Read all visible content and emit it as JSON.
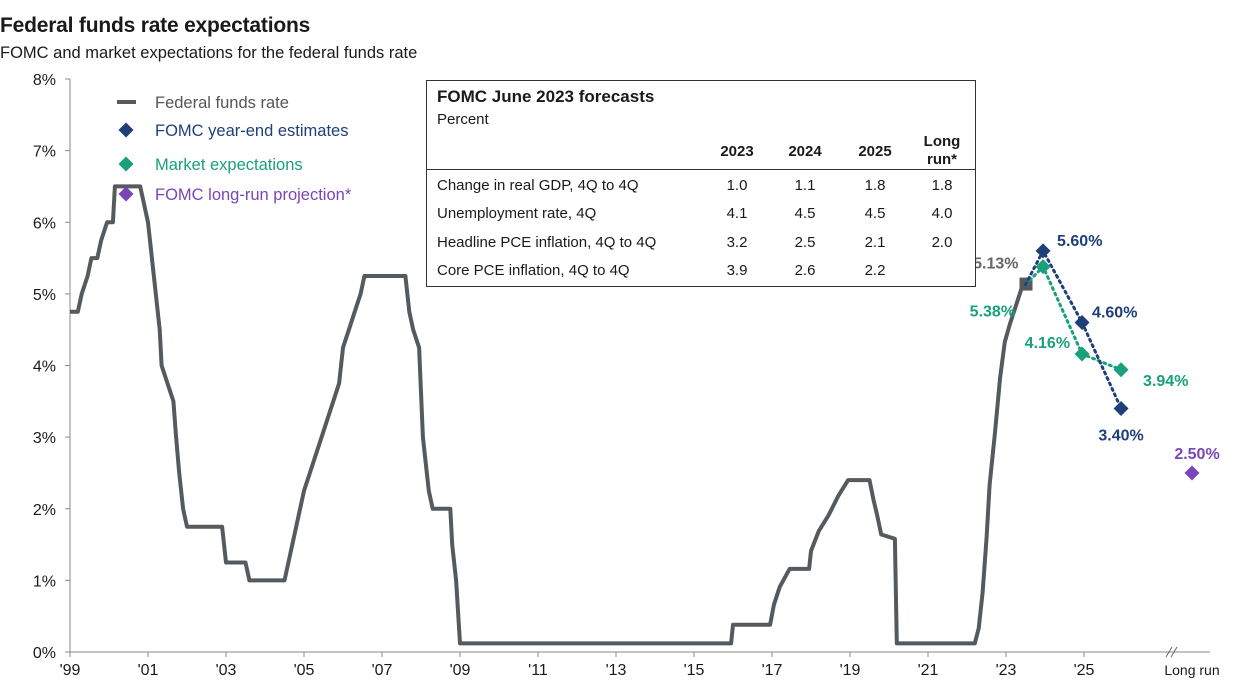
{
  "title": "Federal funds rate expectations",
  "subtitle": "FOMC and market expectations for the federal funds rate",
  "legend": [
    {
      "label": "Federal funds rate",
      "color": "#555a5e",
      "marker": "line"
    },
    {
      "label": "FOMC year-end estimates",
      "color": "#1f3f7a",
      "marker": "diamond"
    },
    {
      "label": "Market expectations",
      "color": "#1aa07a",
      "marker": "diamond"
    },
    {
      "label": "FOMC long-run projection*",
      "color": "#7a45b8",
      "marker": "diamond"
    }
  ],
  "table": {
    "title": "FOMC June 2023 forecasts",
    "unit": "Percent",
    "columns": [
      "2023",
      "2024",
      "2025",
      "Long run*"
    ],
    "rows": [
      {
        "label": "Change in real GDP, 4Q to 4Q",
        "values": [
          "1.0",
          "1.1",
          "1.8",
          "1.8"
        ]
      },
      {
        "label": "Unemployment rate, 4Q",
        "values": [
          "4.1",
          "4.5",
          "4.5",
          "4.0"
        ]
      },
      {
        "label": "Headline PCE inflation, 4Q to 4Q",
        "values": [
          "3.2",
          "2.5",
          "2.1",
          "2.0"
        ]
      },
      {
        "label": "Core PCE inflation, 4Q to 4Q",
        "values": [
          "3.9",
          "2.6",
          "2.2",
          ""
        ]
      }
    ]
  },
  "chart_data": {
    "type": "line",
    "ylim": [
      0,
      8
    ],
    "y_ticks": [
      "0%",
      "1%",
      "2%",
      "3%",
      "4%",
      "5%",
      "6%",
      "7%",
      "8%"
    ],
    "x_ticks": [
      "'99",
      "'01",
      "'03",
      "'05",
      "'07",
      "'09",
      "'11",
      "'13",
      "'15",
      "'17",
      "'19",
      "'21",
      "'23",
      "'25"
    ],
    "x_range": [
      1999,
      2027
    ],
    "long_run_label": "Long run",
    "grid": false,
    "series": [
      {
        "name": "Federal funds rate",
        "color": "#555a5e",
        "points": [
          [
            1999.0,
            4.75
          ],
          [
            1999.2,
            4.75
          ],
          [
            1999.3,
            5.0
          ],
          [
            1999.45,
            5.25
          ],
          [
            1999.55,
            5.5
          ],
          [
            1999.7,
            5.5
          ],
          [
            1999.8,
            5.75
          ],
          [
            1999.95,
            6.0
          ],
          [
            2000.1,
            6.0
          ],
          [
            2000.15,
            6.5
          ],
          [
            2000.8,
            6.5
          ],
          [
            2001.0,
            6.0
          ],
          [
            2001.1,
            5.5
          ],
          [
            2001.2,
            5.0
          ],
          [
            2001.3,
            4.5
          ],
          [
            2001.35,
            4.0
          ],
          [
            2001.5,
            3.75
          ],
          [
            2001.65,
            3.5
          ],
          [
            2001.72,
            3.0
          ],
          [
            2001.8,
            2.5
          ],
          [
            2001.9,
            2.0
          ],
          [
            2002.0,
            1.75
          ],
          [
            2002.9,
            1.75
          ],
          [
            2003.0,
            1.25
          ],
          [
            2003.5,
            1.25
          ],
          [
            2003.6,
            1.0
          ],
          [
            2004.5,
            1.0
          ],
          [
            2004.6,
            1.25
          ],
          [
            2004.7,
            1.5
          ],
          [
            2004.8,
            1.75
          ],
          [
            2004.9,
            2.0
          ],
          [
            2005.0,
            2.25
          ],
          [
            2005.15,
            2.5
          ],
          [
            2005.3,
            2.75
          ],
          [
            2005.45,
            3.0
          ],
          [
            2005.6,
            3.25
          ],
          [
            2005.75,
            3.5
          ],
          [
            2005.9,
            3.75
          ],
          [
            2006.0,
            4.25
          ],
          [
            2006.15,
            4.5
          ],
          [
            2006.3,
            4.75
          ],
          [
            2006.45,
            5.0
          ],
          [
            2006.55,
            5.25
          ],
          [
            2007.6,
            5.25
          ],
          [
            2007.7,
            4.75
          ],
          [
            2007.8,
            4.5
          ],
          [
            2007.95,
            4.25
          ],
          [
            2008.05,
            3.0
          ],
          [
            2008.2,
            2.25
          ],
          [
            2008.3,
            2.0
          ],
          [
            2008.75,
            2.0
          ],
          [
            2008.8,
            1.5
          ],
          [
            2008.9,
            1.0
          ],
          [
            2009.0,
            0.12
          ],
          [
            2015.95,
            0.12
          ],
          [
            2016.0,
            0.38
          ],
          [
            2016.95,
            0.38
          ],
          [
            2017.05,
            0.66
          ],
          [
            2017.2,
            0.91
          ],
          [
            2017.45,
            1.16
          ],
          [
            2017.95,
            1.16
          ],
          [
            2018.0,
            1.41
          ],
          [
            2018.2,
            1.69
          ],
          [
            2018.45,
            1.91
          ],
          [
            2018.7,
            2.18
          ],
          [
            2018.95,
            2.4
          ],
          [
            2019.5,
            2.4
          ],
          [
            2019.6,
            2.13
          ],
          [
            2019.7,
            1.9
          ],
          [
            2019.8,
            1.64
          ],
          [
            2020.15,
            1.58
          ],
          [
            2020.2,
            0.12
          ],
          [
            2022.2,
            0.12
          ],
          [
            2022.3,
            0.33
          ],
          [
            2022.4,
            0.83
          ],
          [
            2022.5,
            1.58
          ],
          [
            2022.58,
            2.33
          ],
          [
            2022.72,
            3.08
          ],
          [
            2022.85,
            3.83
          ],
          [
            2022.97,
            4.33
          ],
          [
            2023.1,
            4.58
          ],
          [
            2023.25,
            4.83
          ],
          [
            2023.4,
            5.08
          ],
          [
            2023.5,
            5.13
          ]
        ]
      },
      {
        "name": "FOMC year-end estimates",
        "color": "#1f3f7a",
        "points": [
          [
            2023.95,
            5.6
          ],
          [
            2024.95,
            4.6
          ],
          [
            2025.95,
            3.4
          ]
        ],
        "labels": [
          "5.60%",
          "4.60%",
          "3.40%"
        ]
      },
      {
        "name": "Market expectations",
        "color": "#1aa07a",
        "points": [
          [
            2023.95,
            5.38
          ],
          [
            2024.95,
            4.16
          ],
          [
            2025.95,
            3.94
          ]
        ],
        "labels": [
          "5.38%",
          "4.16%",
          "3.94%"
        ]
      },
      {
        "name": "FOMC long-run projection*",
        "color": "#7a45b8",
        "points": [
          [
            "Long run",
            2.5
          ]
        ],
        "labels": [
          "2.50%"
        ]
      }
    ],
    "current_point": {
      "value": 5.13,
      "label": "5.13%",
      "color": "#555a5e"
    }
  }
}
